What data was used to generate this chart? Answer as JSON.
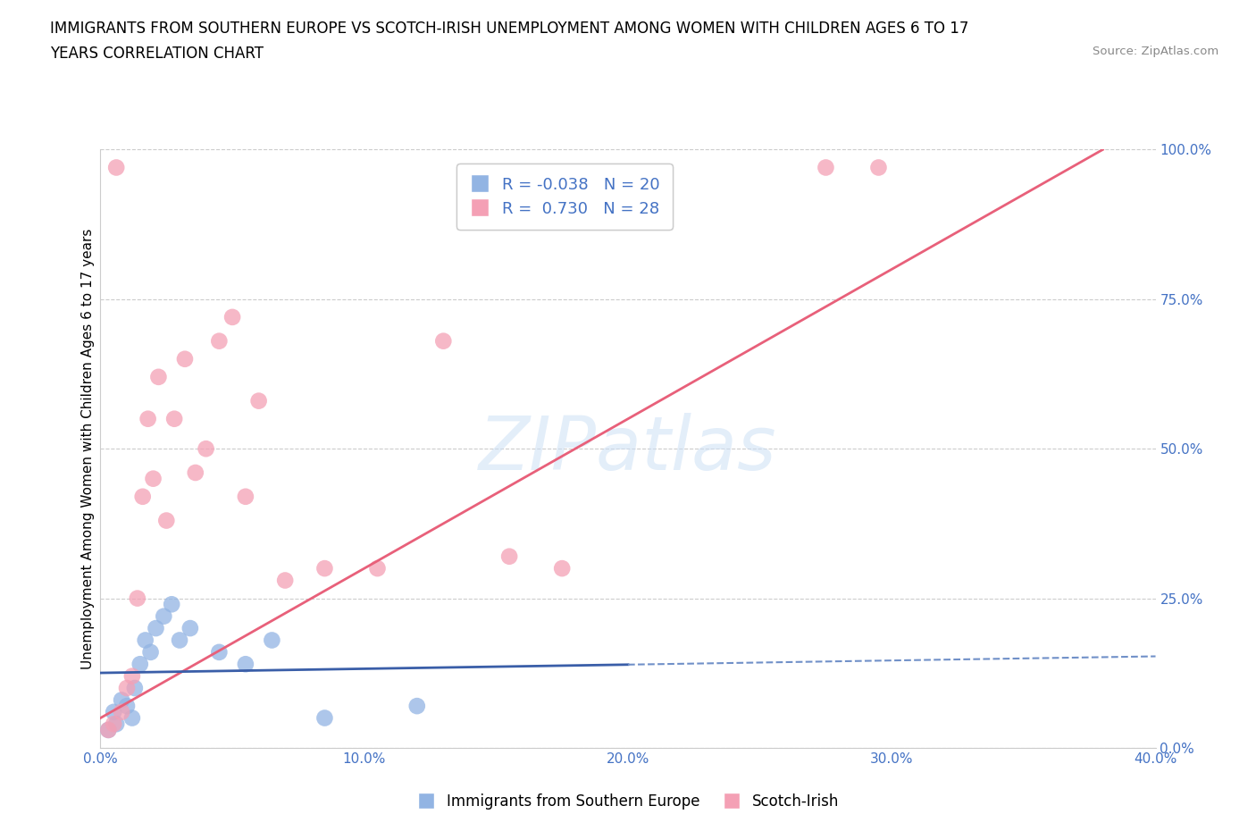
{
  "title_line1": "IMMIGRANTS FROM SOUTHERN EUROPE VS SCOTCH-IRISH UNEMPLOYMENT AMONG WOMEN WITH CHILDREN AGES 6 TO 17",
  "title_line2": "YEARS CORRELATION CHART",
  "source": "Source: ZipAtlas.com",
  "ylabel": "Unemployment Among Women with Children Ages 6 to 17 years",
  "xlim": [
    0.0,
    40.0
  ],
  "ylim": [
    0.0,
    100.0
  ],
  "xticks": [
    0.0,
    10.0,
    20.0,
    30.0,
    40.0
  ],
  "yticks": [
    0.0,
    25.0,
    50.0,
    75.0,
    100.0
  ],
  "xtick_labels": [
    "0.0%",
    "10.0%",
    "20.0%",
    "30.0%",
    "40.0%"
  ],
  "ytick_labels": [
    "0.0%",
    "25.0%",
    "50.0%",
    "75.0%",
    "100.0%"
  ],
  "blue_color": "#92b4e3",
  "pink_color": "#f4a0b5",
  "blue_line_color": "#3a5ea8",
  "blue_dash_color": "#7090c8",
  "pink_line_color": "#e8607a",
  "axis_text_color": "#4472c4",
  "watermark_text": "ZIPatlas",
  "watermark_color": "#cce0f5",
  "R_blue": -0.038,
  "N_blue": 20,
  "R_pink": 0.73,
  "N_pink": 28,
  "blue_scatter_x": [
    0.3,
    0.5,
    0.6,
    0.8,
    1.0,
    1.2,
    1.3,
    1.5,
    1.7,
    1.9,
    2.1,
    2.4,
    2.7,
    3.0,
    3.4,
    4.5,
    5.5,
    6.5,
    8.5,
    12.0
  ],
  "blue_scatter_y": [
    3.0,
    6.0,
    4.0,
    8.0,
    7.0,
    5.0,
    10.0,
    14.0,
    18.0,
    16.0,
    20.0,
    22.0,
    24.0,
    18.0,
    20.0,
    16.0,
    14.0,
    18.0,
    5.0,
    7.0
  ],
  "pink_scatter_x": [
    0.3,
    0.5,
    0.6,
    0.8,
    1.0,
    1.2,
    1.4,
    1.6,
    1.8,
    2.0,
    2.2,
    2.5,
    2.8,
    3.2,
    3.6,
    4.0,
    4.5,
    5.0,
    5.5,
    6.0,
    7.0,
    8.5,
    10.5,
    13.0,
    15.5,
    17.5,
    27.5,
    29.5
  ],
  "pink_scatter_y": [
    3.0,
    4.0,
    97.0,
    6.0,
    10.0,
    12.0,
    25.0,
    42.0,
    55.0,
    45.0,
    62.0,
    38.0,
    55.0,
    65.0,
    46.0,
    50.0,
    68.0,
    72.0,
    42.0,
    58.0,
    28.0,
    30.0,
    30.0,
    68.0,
    32.0,
    30.0,
    97.0,
    97.0
  ],
  "grid_color": "#cccccc",
  "background_color": "#ffffff",
  "blue_line_solid_xmax": 20.0,
  "pink_line_xmin": 0.0,
  "pink_line_xmax": 38.0
}
